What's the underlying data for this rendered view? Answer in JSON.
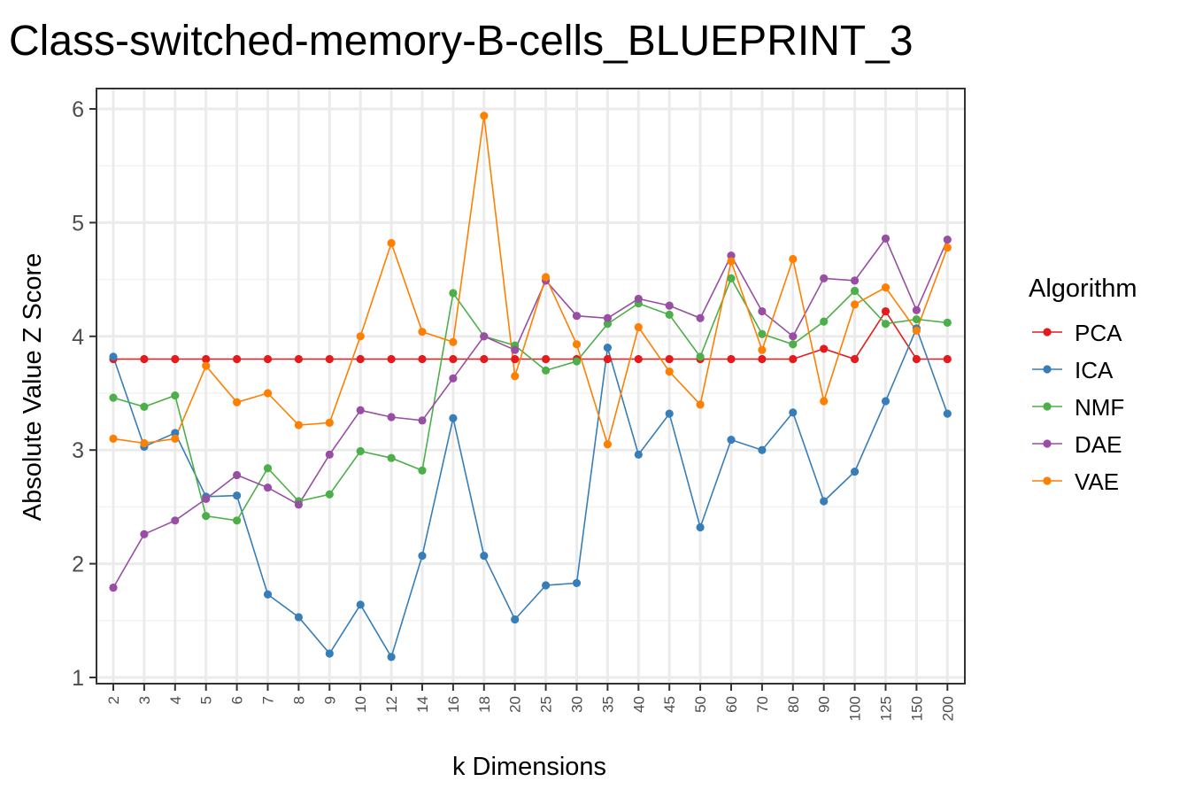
{
  "chart_data": {
    "type": "line",
    "title": "Class-switched-memory-B-cells_BLUEPRINT_3",
    "xlabel": "k Dimensions",
    "ylabel": "Absolute Value Z Score",
    "categories": [
      "2",
      "3",
      "4",
      "5",
      "6",
      "7",
      "8",
      "9",
      "10",
      "12",
      "14",
      "16",
      "18",
      "20",
      "25",
      "30",
      "35",
      "40",
      "45",
      "50",
      "60",
      "70",
      "80",
      "90",
      "100",
      "125",
      "150",
      "200"
    ],
    "ylim": [
      1,
      6
    ],
    "yticks": [
      1,
      2,
      3,
      4,
      5,
      6
    ],
    "grid": true,
    "legend": {
      "title": "Algorithm",
      "placement": "right"
    },
    "series": [
      {
        "name": "PCA",
        "color": "#E41A1C",
        "values": [
          3.8,
          3.8,
          3.8,
          3.8,
          3.8,
          3.8,
          3.8,
          3.8,
          3.8,
          3.8,
          3.8,
          3.8,
          3.8,
          3.8,
          3.8,
          3.8,
          3.8,
          3.8,
          3.8,
          3.8,
          3.8,
          3.8,
          3.8,
          3.89,
          3.8,
          4.22,
          3.8,
          3.8
        ]
      },
      {
        "name": "ICA",
        "color": "#377EB8",
        "values": [
          3.82,
          3.03,
          3.15,
          2.59,
          2.6,
          1.73,
          1.53,
          1.21,
          1.64,
          1.18,
          2.07,
          3.28,
          2.07,
          1.51,
          1.81,
          1.83,
          3.9,
          2.96,
          3.32,
          2.32,
          3.09,
          3.0,
          3.33,
          2.55,
          2.81,
          3.43,
          4.07,
          3.32
        ]
      },
      {
        "name": "NMF",
        "color": "#4DAF4A",
        "values": [
          3.46,
          3.38,
          3.48,
          2.42,
          2.38,
          2.84,
          2.55,
          2.61,
          2.99,
          2.93,
          2.82,
          4.38,
          4.0,
          3.92,
          3.7,
          3.78,
          4.11,
          4.29,
          4.19,
          3.82,
          4.51,
          4.02,
          3.93,
          4.13,
          4.4,
          4.11,
          4.15,
          4.12
        ]
      },
      {
        "name": "DAE",
        "color": "#984EA3",
        "values": [
          1.79,
          2.26,
          2.38,
          2.57,
          2.78,
          2.67,
          2.52,
          2.96,
          3.35,
          3.29,
          3.26,
          3.63,
          4.0,
          3.88,
          4.49,
          4.18,
          4.16,
          4.33,
          4.27,
          4.16,
          4.71,
          4.22,
          4.0,
          4.51,
          4.49,
          4.86,
          4.23,
          4.85
        ]
      },
      {
        "name": "VAE",
        "color": "#FF7F00",
        "values": [
          3.1,
          3.06,
          3.1,
          3.74,
          3.42,
          3.5,
          3.22,
          3.24,
          4.0,
          4.82,
          4.04,
          3.95,
          5.94,
          3.65,
          4.52,
          3.93,
          3.05,
          4.08,
          3.69,
          3.4,
          4.66,
          3.88,
          4.68,
          3.43,
          4.28,
          4.43,
          4.05,
          4.78
        ]
      }
    ]
  }
}
